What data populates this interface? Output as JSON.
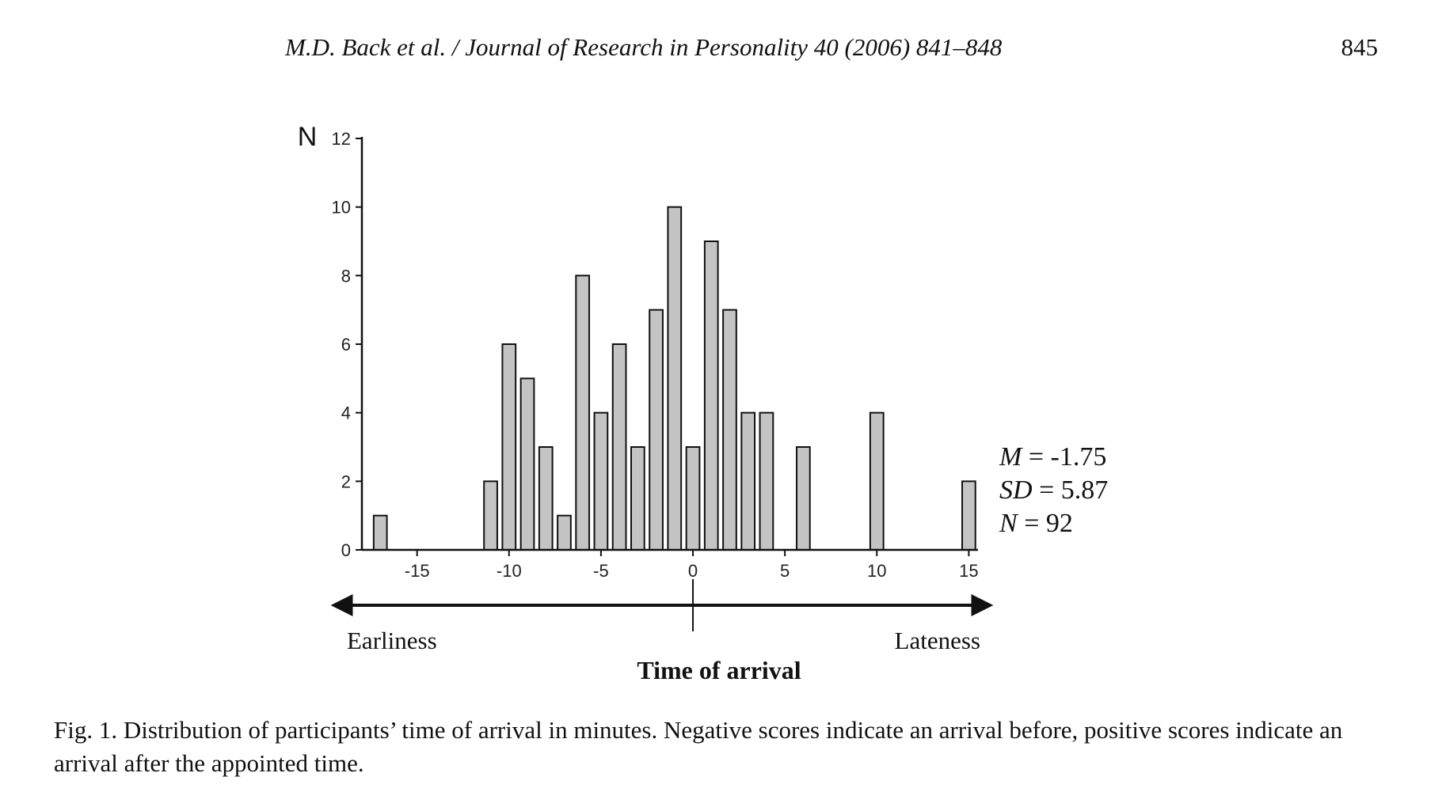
{
  "header": {
    "journal_line": "M.D. Back et al. / Journal of Research in Personality 40 (2006) 841–848",
    "page_number": "845"
  },
  "chart_data": {
    "type": "bar",
    "ylabel": "N",
    "xlabel": "Time of arrival",
    "x": [
      -17,
      -11,
      -10,
      -9,
      -8,
      -7,
      -6,
      -5,
      -4,
      -3,
      -2,
      -1,
      0,
      1,
      2,
      3,
      4,
      6,
      10,
      15
    ],
    "values": [
      1,
      2,
      6,
      5,
      3,
      1,
      8,
      4,
      6,
      3,
      7,
      10,
      3,
      9,
      7,
      4,
      4,
      3,
      4,
      2
    ],
    "xlim": [
      -18,
      15.5
    ],
    "ylim": [
      0,
      12
    ],
    "x_ticks": [
      "-15",
      "-10",
      "-5",
      "0",
      "5",
      "10",
      "15"
    ],
    "y_ticks": [
      "0",
      "2",
      "4",
      "6",
      "8",
      "10",
      "12"
    ],
    "arrow_left_label": "Earliness",
    "arrow_right_label": "Lateness",
    "bar_color": "#c4c4c4",
    "stats": {
      "mean_label": "M",
      "mean_value": " = -1.75",
      "sd_label": "SD",
      "sd_value": " = 5.87",
      "n_label": "N",
      "n_value": " = 92"
    }
  },
  "caption": "Fig. 1.  Distribution of participants’ time of arrival in minutes. Negative scores indicate an arrival before, positive scores indicate an arrival after the appointed time."
}
